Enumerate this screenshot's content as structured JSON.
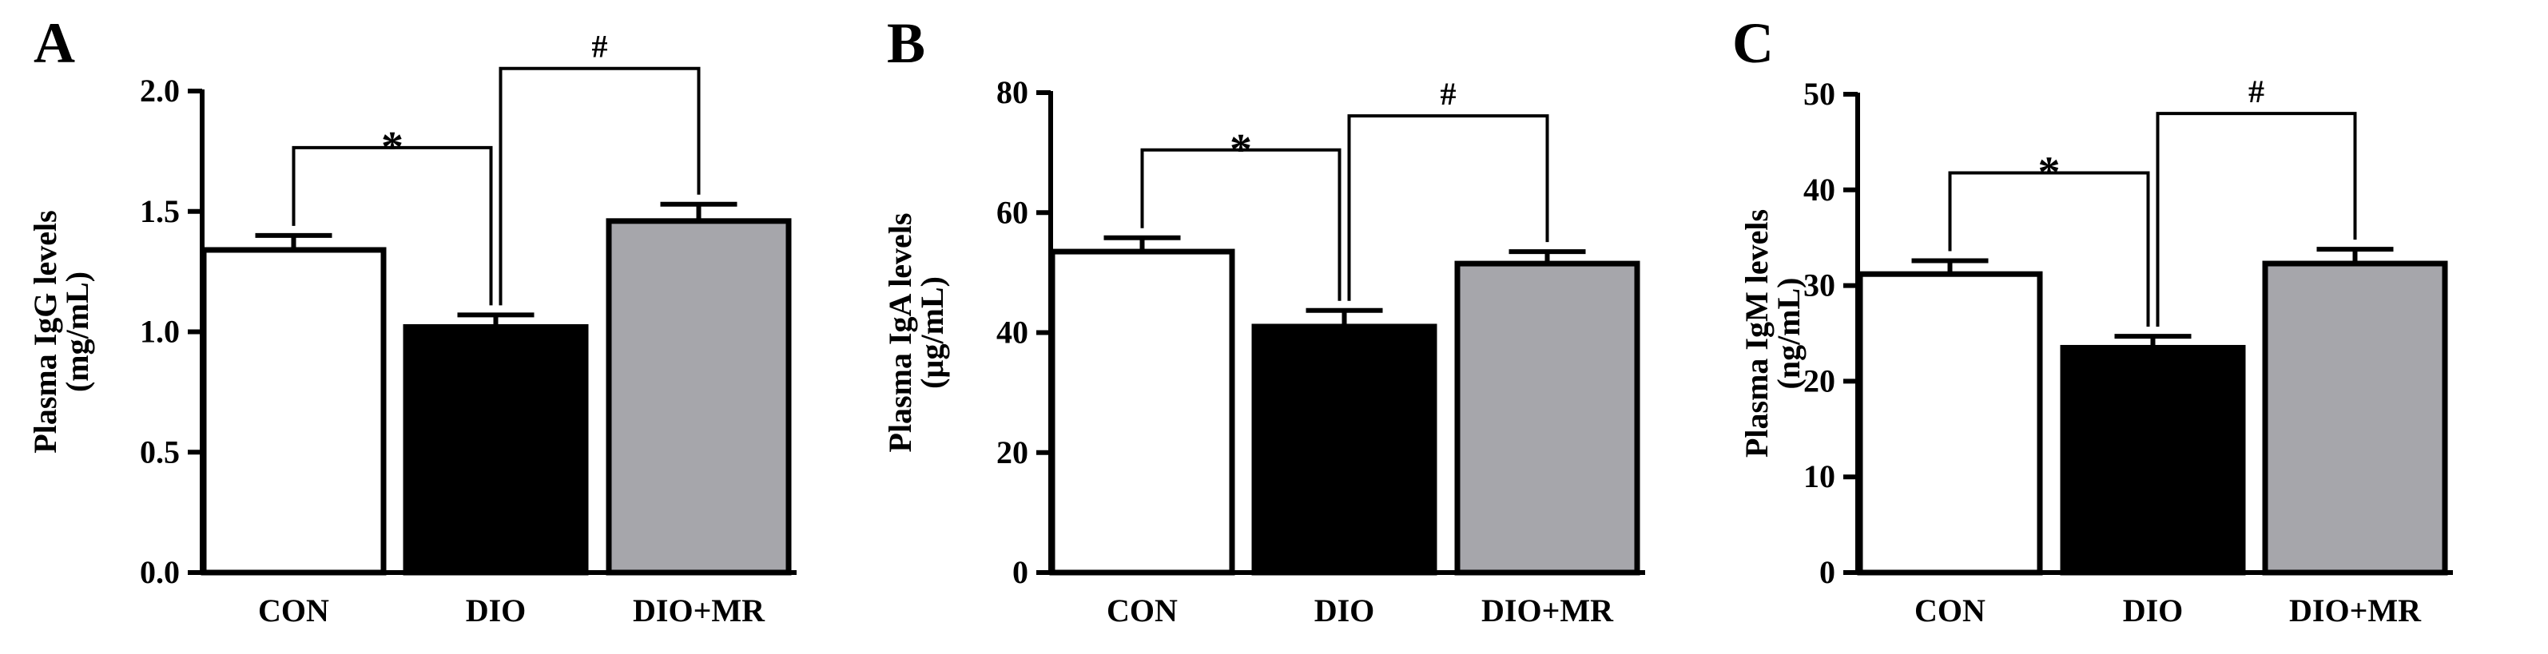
{
  "colors": {
    "CON": "#ffffff",
    "DIO": "#000000",
    "DIO+MR": "#a6a6ab",
    "axis": "#000000"
  },
  "chart_data": [
    {
      "type": "bar",
      "panel": "A",
      "categories": [
        "CON",
        "DIO",
        "DIO+MR"
      ],
      "values": [
        1.34,
        1.02,
        1.46
      ],
      "errors": [
        0.06,
        0.05,
        0.07
      ],
      "ylabel_line1": "Plasma IgG levels",
      "ylabel_line2": "(mg/mL)",
      "ylim": [
        0,
        2.0
      ],
      "yticks": [
        "0.0",
        "0.5",
        "1.0",
        "1.5",
        "2.0"
      ],
      "ytick_values": [
        0,
        0.5,
        1.0,
        1.5,
        2.0
      ],
      "significance": [
        {
          "from": 0,
          "to": 1,
          "label": "*"
        },
        {
          "from": 1,
          "to": 2,
          "label": "#"
        }
      ]
    },
    {
      "type": "bar",
      "panel": "B",
      "categories": [
        "CON",
        "DIO",
        "DIO+MR"
      ],
      "values": [
        53.5,
        41.0,
        51.5
      ],
      "errors": [
        2.3,
        2.7,
        2.0
      ],
      "ylabel_line1": "Plasma IgA levels",
      "ylabel_line2": "(µg/mL)",
      "ylim": [
        0,
        80
      ],
      "yticks": [
        "0",
        "20",
        "40",
        "60",
        "80"
      ],
      "ytick_values": [
        0,
        20,
        40,
        60,
        80
      ],
      "significance": [
        {
          "from": 0,
          "to": 1,
          "label": "*"
        },
        {
          "from": 1,
          "to": 2,
          "label": "#"
        }
      ]
    },
    {
      "type": "bar",
      "panel": "C",
      "categories": [
        "CON",
        "DIO",
        "DIO+MR"
      ],
      "values": [
        31.2,
        23.5,
        32.3
      ],
      "errors": [
        1.4,
        1.2,
        1.5
      ],
      "ylabel_line1": "Plasma IgM levels",
      "ylabel_line2": "(ng/mL)",
      "ylim": [
        0,
        50
      ],
      "yticks": [
        "0",
        "10",
        "20",
        "30",
        "40",
        "50"
      ],
      "ytick_values": [
        0,
        10,
        20,
        30,
        40,
        50
      ],
      "significance": [
        {
          "from": 0,
          "to": 1,
          "label": "*"
        },
        {
          "from": 1,
          "to": 2,
          "label": "#"
        }
      ]
    }
  ]
}
